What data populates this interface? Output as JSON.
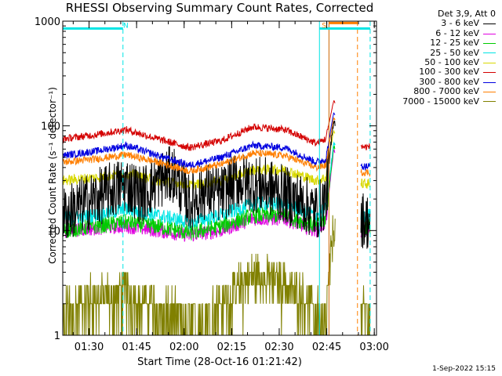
{
  "chart_data": {
    "type": "line",
    "title": "RHESSI Observing Summary Count Rates, Corrected",
    "xlabel": "Start Time (28-Oct-16 01:21:42)",
    "ylabel": "Corrected Count Rate (s⁻¹ detector⁻¹)",
    "legend_header": "Det 3,9, Att 0",
    "legend_placement": "right, outside plot",
    "stamp": "1-Sep-2022 15:15",
    "x_unit": "minutes since 01:21:42",
    "xlim": [
      0,
      99
    ],
    "ylim": [
      1,
      1000
    ],
    "yscale": "log",
    "xticks": [
      {
        "label": "01:30",
        "value": 8.3
      },
      {
        "label": "01:45",
        "value": 23.3
      },
      {
        "label": "02:00",
        "value": 38.3
      },
      {
        "label": "02:15",
        "value": 53.3
      },
      {
        "label": "02:30",
        "value": 68.3
      },
      {
        "label": "02:45",
        "value": 83.3
      },
      {
        "label": "03:00",
        "value": 98.3
      }
    ],
    "yticks": [
      {
        "label": "1",
        "value": 1
      },
      {
        "label": "10",
        "value": 10
      },
      {
        "label": "100",
        "value": 100
      },
      {
        "label": "1000",
        "value": 1000
      }
    ],
    "flags": [
      {
        "text": "N",
        "from": 0,
        "to": 19,
        "color": "#00e5e5"
      },
      {
        "text": "S",
        "from": 81,
        "to": 97,
        "color": "#00e5e5"
      },
      {
        "text": "",
        "from": 84,
        "to": 93,
        "color": "#ff7f00"
      }
    ],
    "flag_value": 850,
    "vlines": [
      {
        "x": 19,
        "color": "#00e5e5",
        "dash": true
      },
      {
        "x": 81,
        "color": "#00e5e5",
        "dash": false
      },
      {
        "x": 84,
        "color": "#cc6600",
        "dash": false
      },
      {
        "x": 93,
        "color": "#ff7f00",
        "dash": true
      },
      {
        "x": 97,
        "color": "#00e5e5",
        "dash": true
      }
    ],
    "gap": [
      86,
      94
    ],
    "series": [
      {
        "name": "3 - 6 keV",
        "color": "#000000",
        "x": [
          0,
          5,
          10,
          15,
          20,
          25,
          30,
          35,
          40,
          45,
          50,
          55,
          60,
          65,
          70,
          75,
          80,
          83,
          85.5,
          94,
          97
        ],
        "y": [
          14,
          17,
          20,
          24,
          28,
          22,
          30,
          35,
          18,
          24,
          22,
          30,
          28,
          26,
          22,
          19,
          15,
          20,
          120,
          13,
          12
        ]
      },
      {
        "name": "6 - 12 keV",
        "color": "#e000e0",
        "x": [
          0,
          10,
          20,
          30,
          40,
          50,
          60,
          70,
          80,
          83,
          85.5,
          94,
          97
        ],
        "y": [
          10,
          10.5,
          11,
          10,
          9,
          10,
          13,
          13,
          10,
          12,
          60,
          10,
          10
        ]
      },
      {
        "name": "12 - 25 keV",
        "color": "#00cc00",
        "x": [
          0,
          10,
          20,
          30,
          40,
          50,
          60,
          70,
          80,
          83,
          85.5,
          94,
          97
        ],
        "y": [
          10,
          11,
          12,
          11,
          9.5,
          11,
          14,
          14,
          11,
          13,
          65,
          11,
          11
        ]
      },
      {
        "name": "25 - 50 keV",
        "color": "#00e5e5",
        "x": [
          0,
          10,
          20,
          30,
          40,
          50,
          60,
          70,
          80,
          83,
          85.5,
          94,
          97
        ],
        "y": [
          13,
          14,
          16,
          14,
          12,
          14,
          18,
          18,
          14,
          16,
          70,
          14,
          14
        ]
      },
      {
        "name": "50 - 100 keV",
        "color": "#d8d800",
        "x": [
          0,
          10,
          20,
          30,
          40,
          50,
          60,
          70,
          80,
          83,
          85.5,
          94,
          97
        ],
        "y": [
          30,
          32,
          35,
          30,
          27,
          30,
          38,
          38,
          30,
          32,
          90,
          28,
          28
        ]
      },
      {
        "name": "100 - 300 keV",
        "color": "#d40000",
        "x": [
          0,
          10,
          20,
          30,
          40,
          50,
          60,
          70,
          80,
          83,
          85.5,
          94,
          97
        ],
        "y": [
          75,
          82,
          92,
          75,
          62,
          72,
          98,
          92,
          68,
          75,
          175,
          63,
          63
        ]
      },
      {
        "name": "300 - 800 keV",
        "color": "#0000e0",
        "x": [
          0,
          10,
          20,
          30,
          40,
          50,
          60,
          70,
          80,
          83,
          85.5,
          94,
          97
        ],
        "y": [
          52,
          57,
          65,
          52,
          42,
          50,
          65,
          62,
          45,
          48,
          135,
          41,
          41
        ]
      },
      {
        "name": "800 - 7000 keV",
        "color": "#ff7f00",
        "x": [
          0,
          10,
          20,
          30,
          40,
          50,
          60,
          70,
          80,
          83,
          85.5,
          94,
          97
        ],
        "y": [
          45,
          48,
          53,
          45,
          37,
          43,
          55,
          52,
          40,
          42,
          120,
          36,
          36
        ]
      },
      {
        "name": "7000 - 15000 keV",
        "color": "#808000",
        "x": [
          0,
          10,
          20,
          30,
          40,
          50,
          60,
          70,
          80,
          83,
          84,
          85.5,
          94,
          97
        ],
        "y": [
          1.8,
          2.5,
          2.8,
          2.0,
          1.5,
          2.3,
          4.0,
          3.5,
          2.0,
          1.3,
          4,
          12,
          1.8,
          1.8
        ]
      }
    ]
  }
}
